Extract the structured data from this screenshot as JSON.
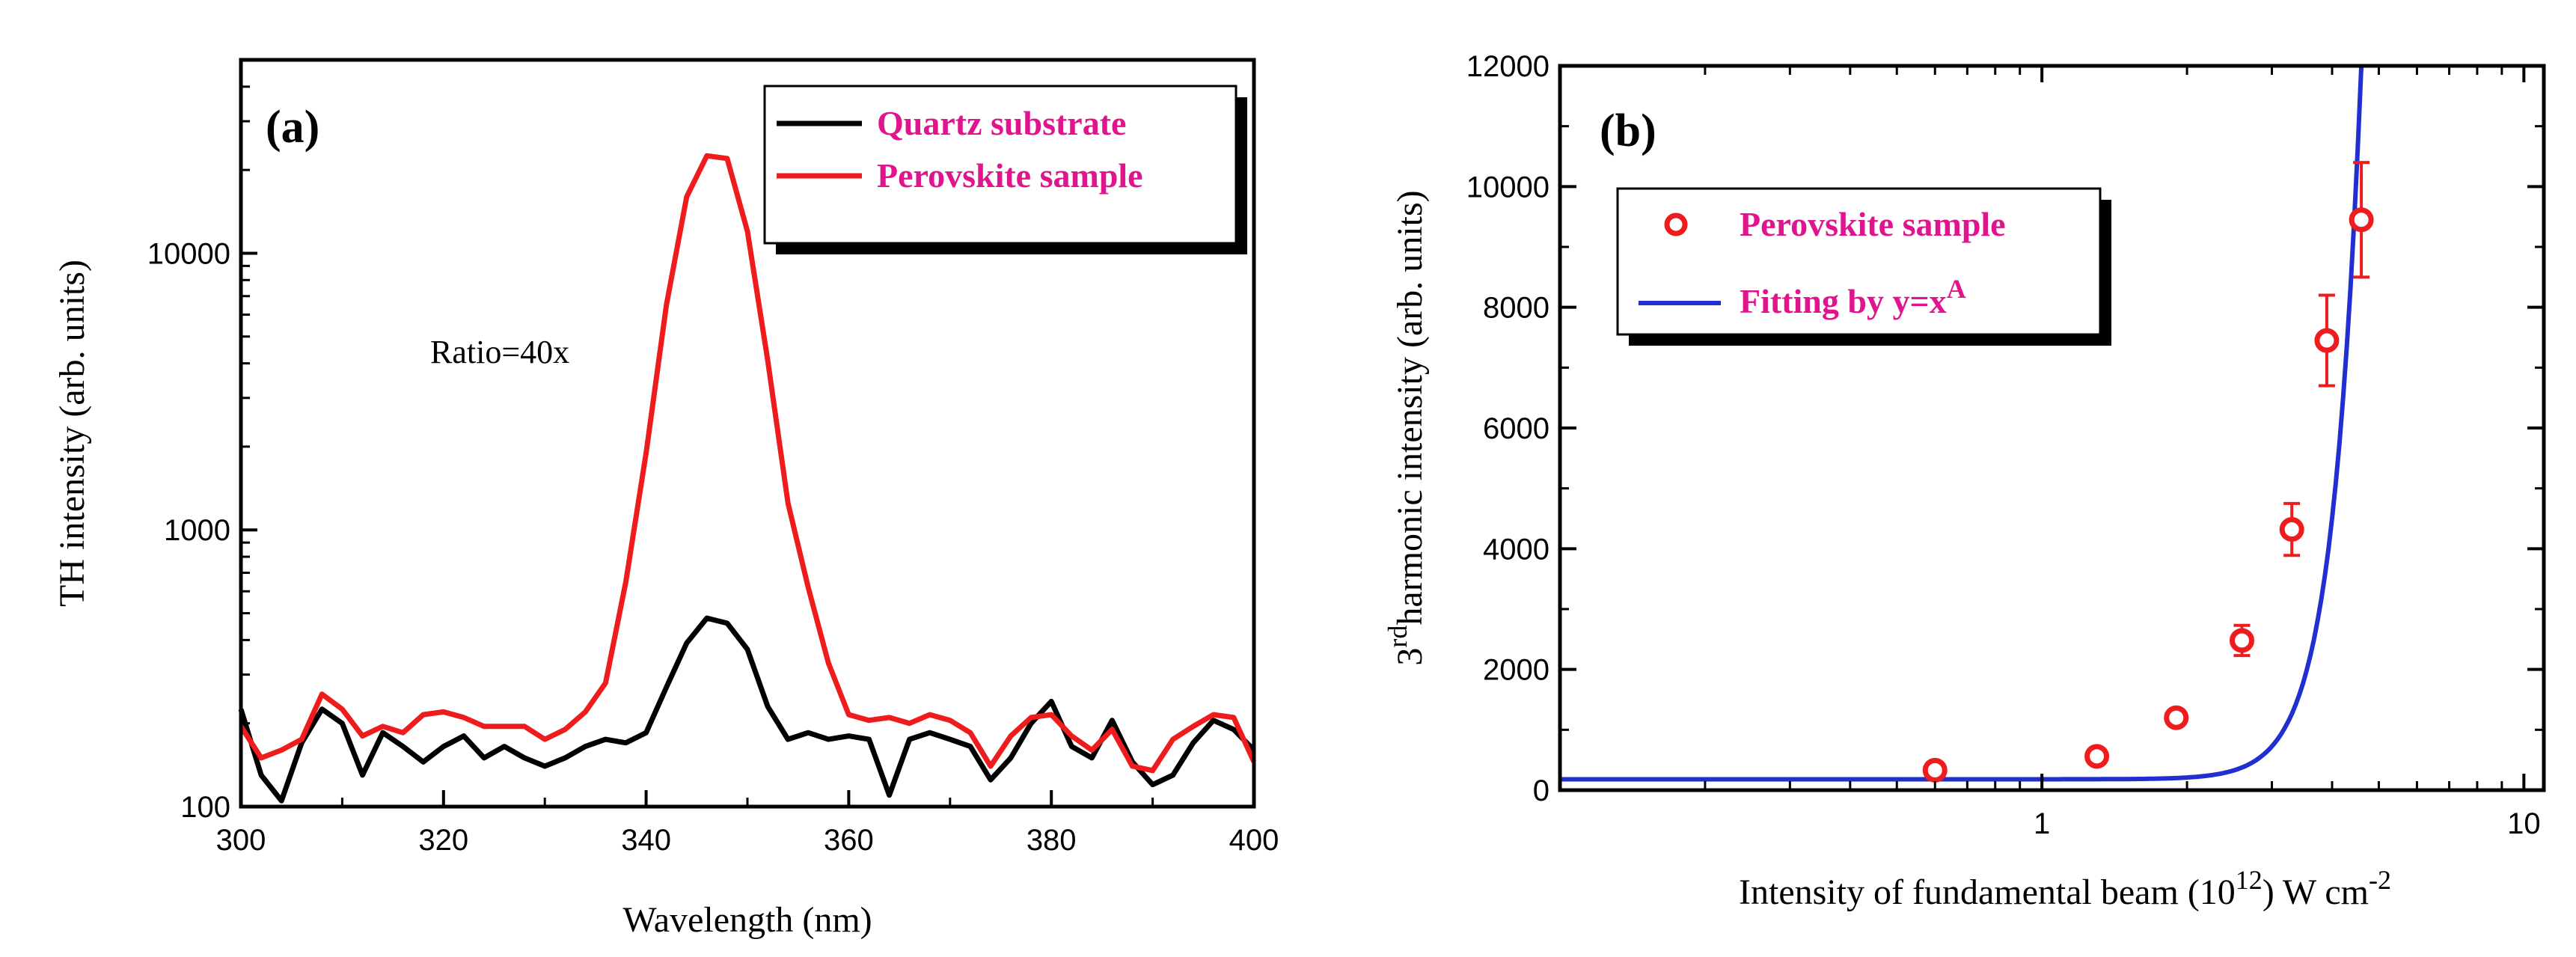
{
  "chart_data": [
    {
      "type": "line",
      "panel_label": "(a)",
      "xlabel": "Wavelength (nm)",
      "ylabel": "TH intensity (arb. units)",
      "xlim": [
        300,
        400
      ],
      "ylim": [
        100,
        50000
      ],
      "yscale": "log",
      "x_ticks": [
        300,
        320,
        340,
        360,
        380,
        400
      ],
      "x_tick_labels": [
        "300",
        "320",
        "340",
        "360",
        "380",
        "400"
      ],
      "y_ticks": [
        100,
        1000,
        10000
      ],
      "y_tick_labels": [
        "100",
        "1000",
        "10000"
      ],
      "annotation": "Ratio=40x",
      "legend_position": "top-right",
      "series": [
        {
          "name": "Quartz substrate",
          "color": "#000000",
          "x": [
            300,
            302,
            304,
            306,
            308,
            310,
            312,
            314,
            316,
            318,
            320,
            322,
            324,
            326,
            328,
            330,
            332,
            334,
            336,
            338,
            340,
            342,
            344,
            346,
            348,
            350,
            352,
            354,
            356,
            358,
            360,
            362,
            364,
            366,
            368,
            370,
            372,
            374,
            376,
            378,
            380,
            382,
            384,
            386,
            388,
            390,
            392,
            394,
            396,
            398,
            400
          ],
          "y": [
            225,
            130,
            105,
            170,
            225,
            200,
            130,
            185,
            165,
            145,
            165,
            180,
            150,
            165,
            150,
            140,
            150,
            165,
            175,
            170,
            185,
            270,
            390,
            480,
            460,
            370,
            230,
            175,
            185,
            175,
            180,
            175,
            110,
            175,
            185,
            175,
            165,
            125,
            150,
            200,
            240,
            165,
            150,
            205,
            145,
            120,
            130,
            170,
            205,
            190,
            160
          ]
        },
        {
          "name": "Perovskite sample",
          "color": "#ee1c1c",
          "x": [
            300,
            302,
            304,
            306,
            308,
            310,
            312,
            314,
            316,
            318,
            320,
            322,
            324,
            326,
            328,
            330,
            332,
            334,
            336,
            338,
            340,
            342,
            344,
            346,
            348,
            350,
            352,
            354,
            356,
            358,
            360,
            362,
            364,
            366,
            368,
            370,
            372,
            374,
            376,
            378,
            380,
            382,
            384,
            386,
            388,
            390,
            392,
            394,
            396,
            398,
            400
          ],
          "y": [
            195,
            150,
            160,
            175,
            255,
            225,
            180,
            195,
            185,
            215,
            220,
            210,
            195,
            195,
            195,
            175,
            190,
            220,
            280,
            650,
            1900,
            6500,
            16000,
            22500,
            22000,
            12000,
            4100,
            1250,
            620,
            330,
            215,
            205,
            210,
            200,
            215,
            205,
            185,
            140,
            180,
            210,
            215,
            180,
            160,
            190,
            140,
            135,
            175,
            195,
            215,
            210,
            145
          ]
        }
      ]
    },
    {
      "type": "scatter",
      "panel_label": "(b)",
      "xlabel_parts": [
        "Intensity of  fundamental beam (10",
        "12",
        ") W cm",
        "-2"
      ],
      "ylabel_parts": [
        "3",
        "rd",
        "harmonic intensity (arb. units)"
      ],
      "xlim": [
        0.1,
        11
      ],
      "xscale": "log",
      "ylim": [
        0,
        12000
      ],
      "x_ticks": [
        1,
        10
      ],
      "x_tick_labels": [
        "1",
        "10"
      ],
      "y_ticks": [
        0,
        2000,
        4000,
        6000,
        8000,
        10000,
        12000
      ],
      "y_tick_labels": [
        "0",
        "2000",
        "4000",
        "6000",
        "8000",
        "10000",
        "12000"
      ],
      "legend_position": "top-left",
      "series": [
        {
          "name": "Perovskite sample",
          "kind": "points-with-error-bars",
          "color": "#ee1c1c",
          "x": [
            0.6,
            1.3,
            1.9,
            2.6,
            3.3,
            3.9,
            4.6
          ],
          "y": [
            330,
            560,
            1200,
            2480,
            4320,
            7450,
            9450
          ],
          "error": [
            0,
            0,
            0,
            250,
            430,
            750,
            950
          ]
        },
        {
          "name_parts": [
            "Fitting by y=x",
            "A"
          ],
          "kind": "fit-line",
          "color": "#1f2fd0",
          "y_offset": 180,
          "coefficient": 0.2,
          "exponent": 7.2,
          "x_start": 0.1,
          "y_at_right_edge": 12000
        }
      ]
    }
  ]
}
